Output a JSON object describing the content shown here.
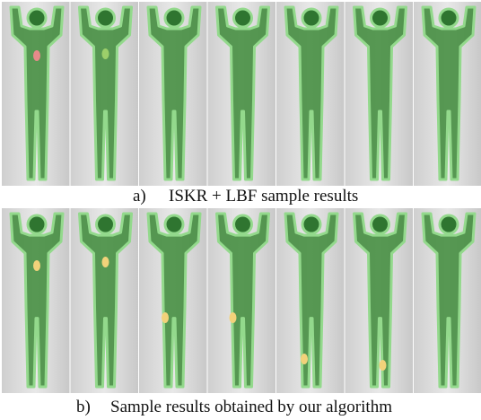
{
  "figure": {
    "captions": [
      {
        "label": "a)",
        "text": "ISKR + LBF sample results"
      },
      {
        "label": "b)",
        "text": "Sample results obtained by our algorithm"
      }
    ]
  }
}
